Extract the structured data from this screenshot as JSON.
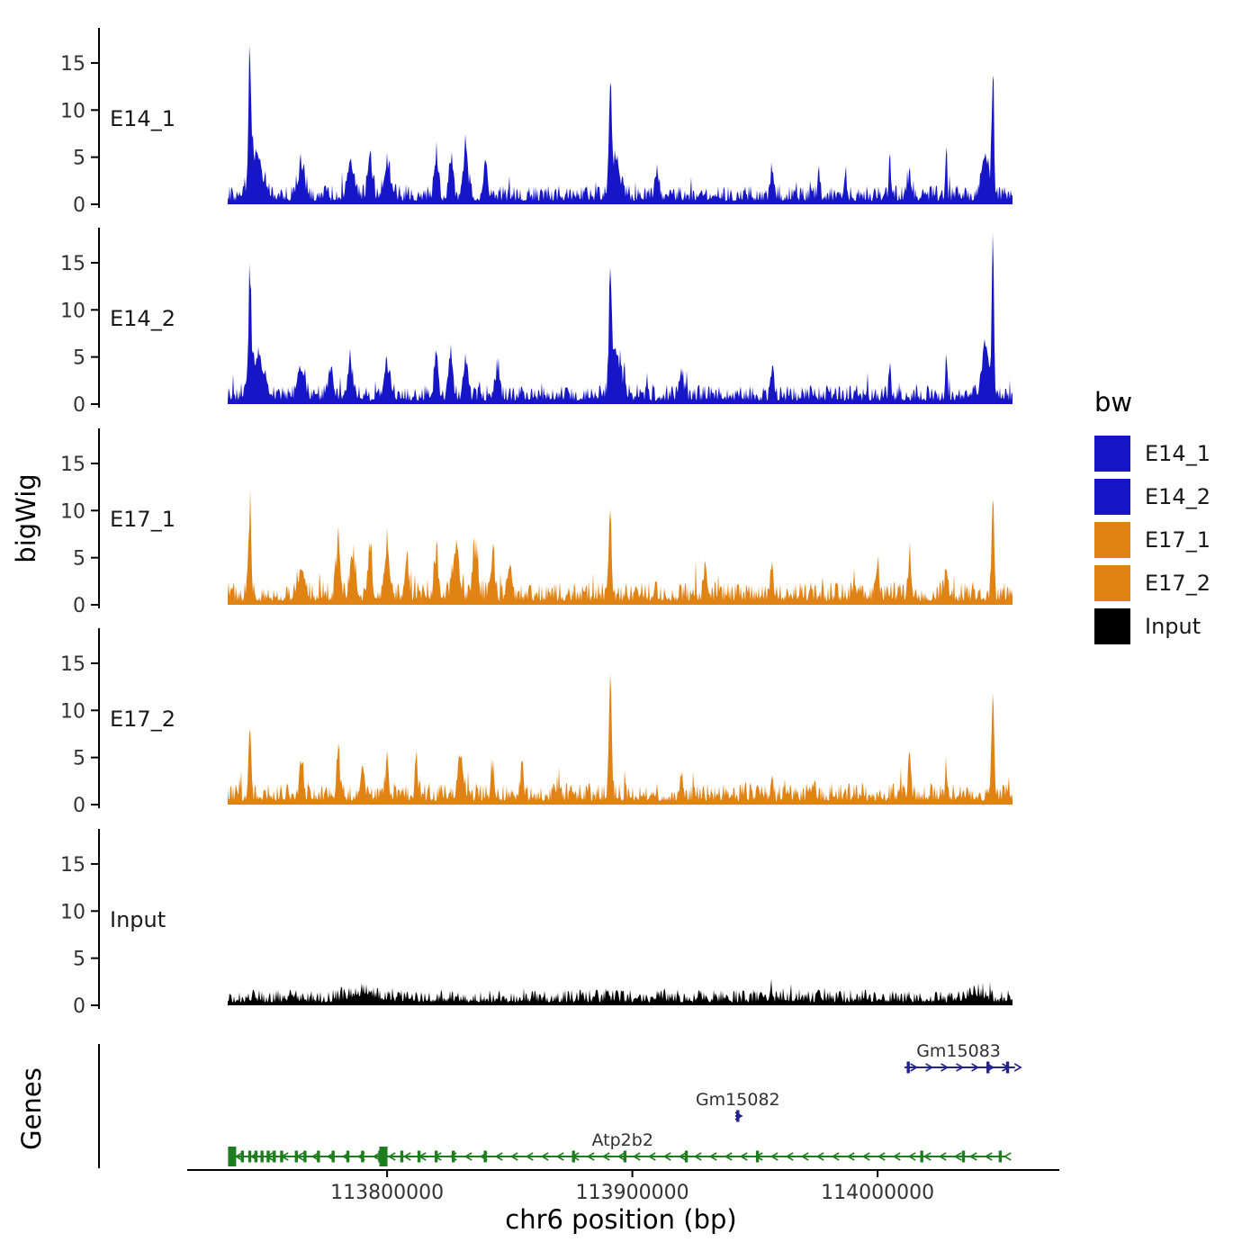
{
  "figure": {
    "background": "#ffffff",
    "text_color": "#303030"
  },
  "legend": {
    "title": "bw",
    "items": [
      {
        "label": "E14_1",
        "color": "#1616c8"
      },
      {
        "label": "E14_2",
        "color": "#1616c8"
      },
      {
        "label": "E17_1",
        "color": "#e08214"
      },
      {
        "label": "E17_2",
        "color": "#e08214"
      },
      {
        "label": "Input",
        "color": "#000000"
      }
    ]
  },
  "chart_data": {
    "type": "area",
    "title": "",
    "xlabel": "chr6 position (bp)",
    "ylabel": "bigWig",
    "genes_label": "Genes",
    "x_range": [
      113735000,
      114055000
    ],
    "x_ticks": [
      113800000,
      113900000,
      114000000
    ],
    "y_ticks": [
      0,
      5,
      10,
      15
    ],
    "ylim": [
      0,
      18.3
    ],
    "grid": false,
    "legend_position": "right",
    "tracks": [
      {
        "name": "E14_1",
        "color": "#1616c8",
        "seed": 11,
        "baseline": 1.1,
        "peaks": [
          [
            113744000,
            13,
            500
          ],
          [
            113746500,
            5,
            2500
          ],
          [
            113765000,
            3.5,
            1500
          ],
          [
            113785000,
            4,
            1200
          ],
          [
            113793000,
            4.5,
            1000
          ],
          [
            113800000,
            3.5,
            1500
          ],
          [
            113820000,
            4.5,
            800
          ],
          [
            113826000,
            5,
            800
          ],
          [
            113832000,
            5.5,
            1000
          ],
          [
            113840000,
            4,
            800
          ],
          [
            113891000,
            11,
            500
          ],
          [
            113893000,
            4.5,
            2000
          ],
          [
            113910000,
            3,
            800
          ],
          [
            113957000,
            4,
            600
          ],
          [
            113976000,
            3.5,
            500
          ],
          [
            113987000,
            3,
            400
          ],
          [
            114005000,
            5.5,
            300
          ],
          [
            114013000,
            3,
            500
          ],
          [
            114028000,
            5,
            350
          ],
          [
            114044000,
            5,
            1500
          ],
          [
            114047000,
            15.2,
            450
          ]
        ]
      },
      {
        "name": "E14_2",
        "color": "#1616c8",
        "seed": 22,
        "baseline": 1.1,
        "peaks": [
          [
            113744000,
            12.5,
            500
          ],
          [
            113747000,
            5,
            2500
          ],
          [
            113765000,
            3.5,
            1300
          ],
          [
            113777000,
            3,
            1000
          ],
          [
            113785000,
            4,
            1000
          ],
          [
            113800000,
            3.5,
            1300
          ],
          [
            113820000,
            4.5,
            800
          ],
          [
            113826000,
            5,
            800
          ],
          [
            113832000,
            4.5,
            800
          ],
          [
            113845000,
            3.5,
            800
          ],
          [
            113891000,
            12.5,
            550
          ],
          [
            113893500,
            5,
            2000
          ],
          [
            113920000,
            3,
            800
          ],
          [
            113957000,
            3.5,
            600
          ],
          [
            114005000,
            4,
            400
          ],
          [
            114028000,
            5,
            400
          ],
          [
            114044000,
            5.5,
            1500
          ],
          [
            114047000,
            17.5,
            450
          ]
        ]
      },
      {
        "name": "E17_1",
        "color": "#e08214",
        "seed": 33,
        "baseline": 1.4,
        "peaks": [
          [
            113744000,
            10.5,
            550
          ],
          [
            113765000,
            3,
            1000
          ],
          [
            113780000,
            6,
            800
          ],
          [
            113786000,
            5,
            1000
          ],
          [
            113793000,
            5.5,
            800
          ],
          [
            113800000,
            5,
            1000
          ],
          [
            113808000,
            4,
            800
          ],
          [
            113820000,
            5,
            800
          ],
          [
            113828000,
            5.5,
            1300
          ],
          [
            113836000,
            6,
            1000
          ],
          [
            113843000,
            5,
            800
          ],
          [
            113850000,
            4,
            800
          ],
          [
            113891000,
            9,
            550
          ],
          [
            113930000,
            3,
            800
          ],
          [
            113957000,
            3,
            600
          ],
          [
            114000000,
            4,
            600
          ],
          [
            114013000,
            4.5,
            500
          ],
          [
            114028000,
            3.5,
            500
          ],
          [
            114047000,
            11,
            500
          ]
        ]
      },
      {
        "name": "E17_2",
        "color": "#e08214",
        "seed": 44,
        "baseline": 1.3,
        "peaks": [
          [
            113744000,
            8,
            550
          ],
          [
            113765000,
            3,
            800
          ],
          [
            113780000,
            6.5,
            600
          ],
          [
            113790000,
            4,
            800
          ],
          [
            113800000,
            5,
            600
          ],
          [
            113812000,
            3.5,
            600
          ],
          [
            113830000,
            4.5,
            1000
          ],
          [
            113843000,
            4,
            600
          ],
          [
            113855000,
            3.5,
            500
          ],
          [
            113891000,
            13,
            550
          ],
          [
            113920000,
            3,
            500
          ],
          [
            113957000,
            3,
            500
          ],
          [
            114013000,
            3.5,
            500
          ],
          [
            114028000,
            3,
            500
          ],
          [
            114047000,
            13,
            500
          ]
        ]
      },
      {
        "name": "Input",
        "color": "#000000",
        "seed": 55,
        "baseline": 0.9,
        "peaks": [
          [
            113790000,
            0.8,
            5000
          ],
          [
            113890000,
            1,
            600
          ],
          [
            113957000,
            1,
            400
          ],
          [
            114040000,
            0.7,
            3000
          ]
        ]
      }
    ],
    "genes": [
      {
        "name": "Gm15083",
        "color": "#23238b",
        "start": 114011000,
        "end": 114056000,
        "strand": "+",
        "row": 0,
        "exons": [
          114012500,
          114045000,
          114053000
        ],
        "big_exons": [],
        "label_anchor": 114033000
      },
      {
        "name": "Gm15082",
        "color": "#23238b",
        "start": 113942000,
        "end": 113944500,
        "strand": "+",
        "row": 1,
        "exons": [
          113943000
        ],
        "big_exons": [],
        "label_anchor": 113943000
      },
      {
        "name": "Atp2b2",
        "color": "#1e7d1e",
        "start": 113736000,
        "end": 114052000,
        "strand": "-",
        "row": 2,
        "exons": [
          113741000,
          113744000,
          113746500,
          113749000,
          113751500,
          113754000,
          113757000,
          113763000,
          113766500,
          113772000,
          113778000,
          113784000,
          113790000,
          113797000,
          113806000,
          113813000,
          113820000,
          113827000,
          113840000,
          113876000,
          113897000,
          113922000,
          113951000,
          114018000,
          114035000,
          114050000
        ],
        "big_exons": [
          113736800,
          113798500
        ],
        "label_anchor": 113896000
      }
    ]
  }
}
